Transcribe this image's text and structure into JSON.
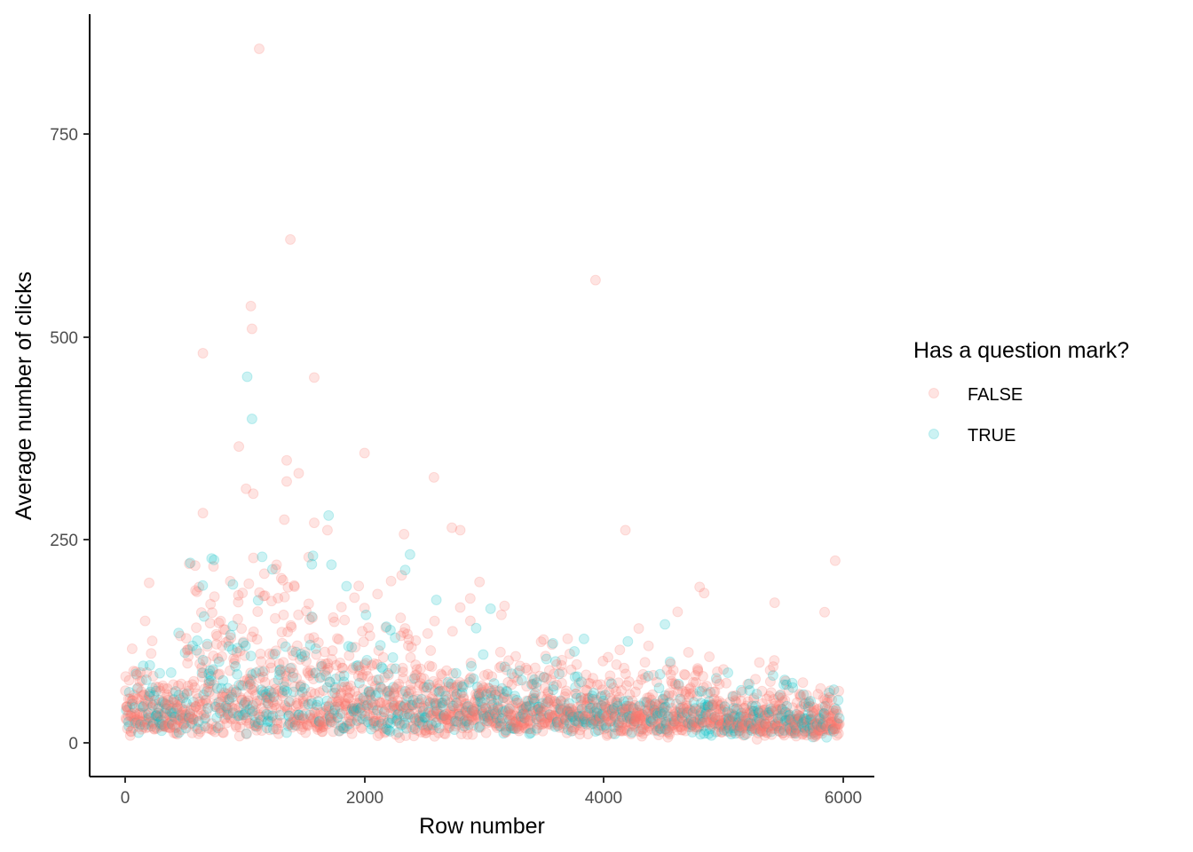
{
  "chart_data": {
    "type": "scatter",
    "xlabel": "Row number",
    "ylabel": "Average number of clicks",
    "xlim": [
      -290,
      6290
    ],
    "ylim": [
      -42,
      895
    ],
    "x_ticks": [
      0,
      2000,
      4000,
      6000
    ],
    "y_ticks": [
      0,
      250,
      500,
      750
    ],
    "x_tick_labels": [
      "0",
      "2000",
      "4000",
      "6000"
    ],
    "y_tick_labels": [
      "0",
      "250",
      "500",
      "750"
    ],
    "grid": false,
    "point_alpha": 0.2,
    "n_points": 5970,
    "legend": {
      "title": "Has a question mark?",
      "position": "right",
      "entries": [
        {
          "label": "FALSE",
          "color": "#F8766D"
        },
        {
          "label": "TRUE",
          "color": "#00BFC4"
        }
      ]
    },
    "series": [
      {
        "name": "FALSE",
        "color": "#F8766D",
        "outliers": [
          {
            "x": 1120,
            "y": 855
          },
          {
            "x": 1380,
            "y": 620
          },
          {
            "x": 3930,
            "y": 570
          },
          {
            "x": 1050,
            "y": 538
          },
          {
            "x": 1060,
            "y": 510
          },
          {
            "x": 650,
            "y": 480
          },
          {
            "x": 1580,
            "y": 450
          },
          {
            "x": 950,
            "y": 365
          },
          {
            "x": 2000,
            "y": 357
          },
          {
            "x": 1350,
            "y": 348
          },
          {
            "x": 1450,
            "y": 332
          },
          {
            "x": 1350,
            "y": 322
          },
          {
            "x": 2580,
            "y": 327
          },
          {
            "x": 1010,
            "y": 313
          },
          {
            "x": 1070,
            "y": 307
          },
          {
            "x": 650,
            "y": 283
          },
          {
            "x": 1330,
            "y": 275
          },
          {
            "x": 1580,
            "y": 271
          },
          {
            "x": 2730,
            "y": 265
          },
          {
            "x": 2800,
            "y": 262
          },
          {
            "x": 4180,
            "y": 262
          },
          {
            "x": 1690,
            "y": 262
          },
          {
            "x": 2330,
            "y": 257
          },
          {
            "x": 4800,
            "y": 192
          },
          {
            "x": 200,
            "y": 197
          }
        ]
      },
      {
        "name": "TRUE",
        "color": "#00BFC4",
        "outliers": [
          {
            "x": 1020,
            "y": 451
          },
          {
            "x": 1060,
            "y": 399
          },
          {
            "x": 1700,
            "y": 280
          },
          {
            "x": 2380,
            "y": 232
          },
          {
            "x": 1560,
            "y": 220
          },
          {
            "x": 2340,
            "y": 213
          },
          {
            "x": 1850,
            "y": 193
          },
          {
            "x": 2600,
            "y": 176
          },
          {
            "x": 4510,
            "y": 146
          },
          {
            "x": 4200,
            "y": 125
          }
        ]
      }
    ]
  }
}
